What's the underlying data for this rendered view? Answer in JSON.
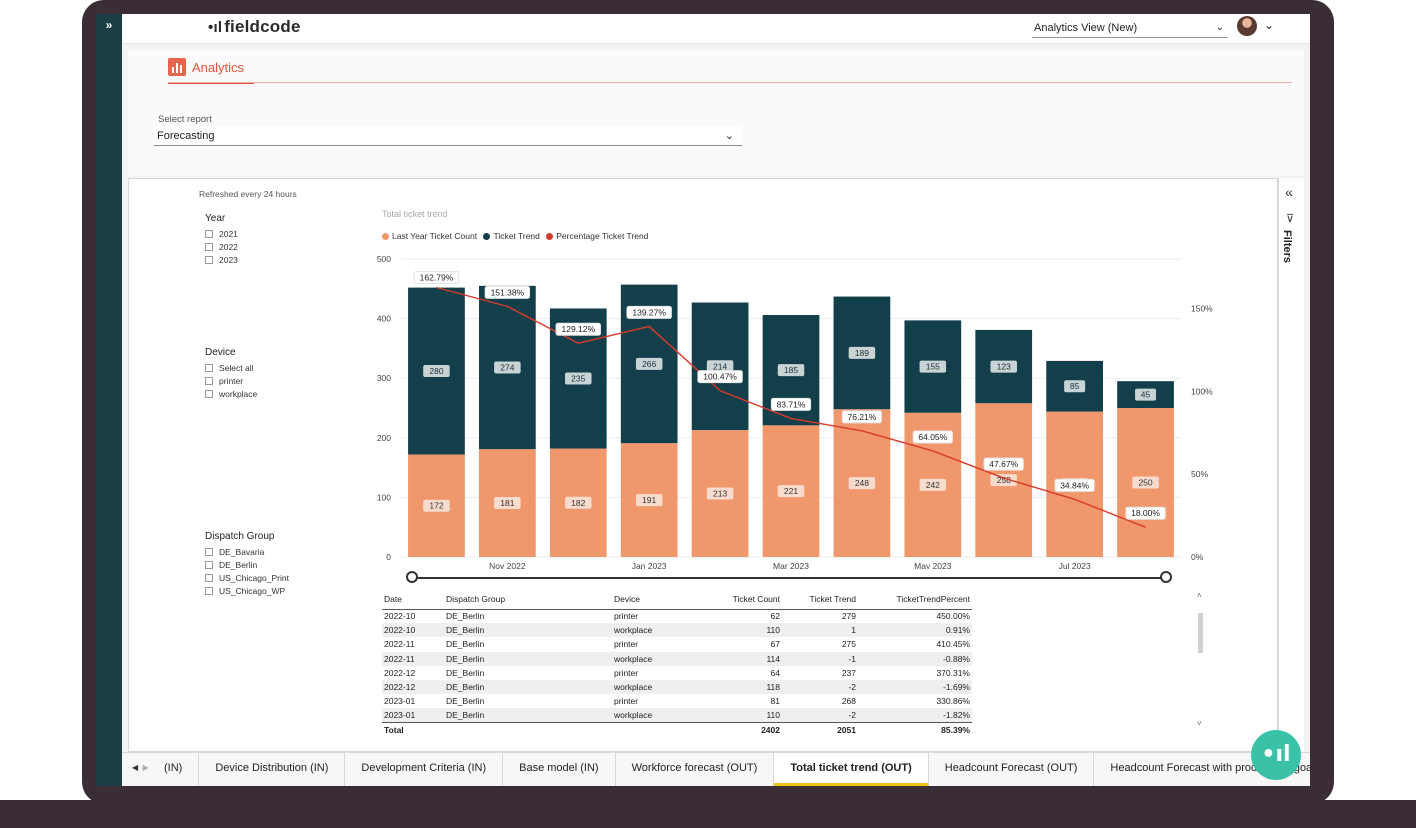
{
  "sidebar": {
    "expand_icon": "»"
  },
  "app": {
    "logo_text": "fieldcode",
    "logo_mark": "•ıl"
  },
  "header": {
    "view_select": "Analytics View (New)",
    "view_chevron": "⌄",
    "user_chevron": "⌄"
  },
  "nav": {
    "analytics_label": "Analytics"
  },
  "report_select": {
    "label": "Select report",
    "value": "Forecasting",
    "chevron": "⌄"
  },
  "report": {
    "refreshed": "Refreshed every 24 hours",
    "filters": {
      "year": {
        "title": "Year",
        "options": [
          "2021",
          "2022",
          "2023"
        ]
      },
      "device": {
        "title": "Device",
        "options": [
          "Select all",
          "printer",
          "workplace"
        ]
      },
      "dispatch_group": {
        "title": "Dispatch Group",
        "options": [
          "DE_Bavaria",
          "DE_Berlin",
          "US_Chicago_Print",
          "US_Chicago_WP"
        ]
      }
    }
  },
  "filter_pane": {
    "label": "Filters",
    "collapse_icon": "«",
    "funnel_icon": "⊽"
  },
  "chart_data": {
    "type": "bar",
    "title": "Total ticket trend",
    "legend": [
      "Last Year Ticket Count",
      "Ticket Trend",
      "Percentage Ticket Trend"
    ],
    "colors": {
      "last_year": "#f0976c",
      "trend": "#123f49",
      "percent": "#d93a2b"
    },
    "x_tick_labels": [
      "Nov 2022",
      "Jan 2023",
      "Mar 2023",
      "May 2023",
      "Jul 2023"
    ],
    "y_ticks": [
      "0",
      "100",
      "200",
      "300",
      "400",
      "500"
    ],
    "y2_ticks": [
      "0%",
      "50%",
      "100%",
      "150%"
    ],
    "ylim": [
      0,
      500
    ],
    "y2lim": [
      0,
      180
    ],
    "bars_last_year": [
      172,
      181,
      182,
      191,
      213,
      221,
      248,
      242,
      258,
      244,
      250
    ],
    "bars_trend": [
      280,
      274,
      235,
      266,
      214,
      185,
      189,
      155,
      123,
      85,
      45
    ],
    "percent_values": [
      162.79,
      151.38,
      129.12,
      139.27,
      100.47,
      83.71,
      76.21,
      64.05,
      47.67,
      34.84,
      18.0
    ],
    "percent_labels": [
      "162.79%",
      "151.38%",
      "129.12%",
      "139.27%",
      "100.47%",
      "83.71%",
      "76.21%",
      "64.05%",
      "47.67%",
      "34.84%",
      "18.00%"
    ]
  },
  "table": {
    "headers": [
      "Date",
      "Dispatch Group",
      "Device",
      "Ticket Count",
      "Ticket Trend",
      "TicketTrendPercent"
    ],
    "rows": [
      [
        "2022-10",
        "DE_Berlin",
        "printer",
        "62",
        "279",
        "450.00%"
      ],
      [
        "2022-10",
        "DE_Berlin",
        "workplace",
        "110",
        "1",
        "0.91%"
      ],
      [
        "2022-11",
        "DE_Berlin",
        "printer",
        "67",
        "275",
        "410.45%"
      ],
      [
        "2022-11",
        "DE_Berlin",
        "workplace",
        "114",
        "-1",
        "-0.88%"
      ],
      [
        "2022-12",
        "DE_Berlin",
        "printer",
        "64",
        "237",
        "370.31%"
      ],
      [
        "2022-12",
        "DE_Berlin",
        "workplace",
        "118",
        "-2",
        "-1.69%"
      ],
      [
        "2023-01",
        "DE_Berlin",
        "printer",
        "81",
        "268",
        "330.86%"
      ],
      [
        "2023-01",
        "DE_Berlin",
        "workplace",
        "110",
        "-2",
        "-1.82%"
      ]
    ],
    "total": {
      "label": "Total",
      "ticket_count": "2402",
      "ticket_trend": "2051",
      "percent": "85.39%"
    }
  },
  "tabs": {
    "items": [
      "(IN)",
      "Device Distribution (IN)",
      "Development Criteria (IN)",
      "Base model (IN)",
      "Workforce forecast (OUT)",
      "Total ticket trend (OUT)",
      "Headcount Forecast (OUT)",
      "Headcount Forecast with productivity goal"
    ],
    "active": "Total ticket trend (OUT)",
    "prev_icon": "◀",
    "next_icon": "▶"
  },
  "fab": {
    "icon": "fieldcode-logo-icon",
    "text": "•ıl"
  }
}
